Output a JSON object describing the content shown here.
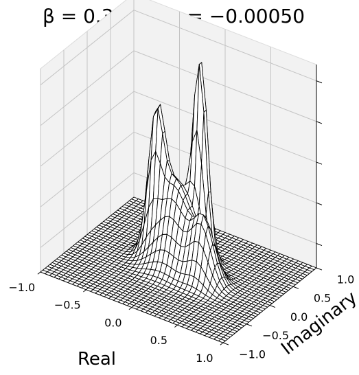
{
  "chart_data": {
    "type": "surface",
    "title": "β = 0.36712  h = −0.00050",
    "xlabel": "Real",
    "ylabel": "Imaginary",
    "zlabel": "",
    "xlim": [
      -1.0,
      1.0
    ],
    "ylim": [
      -1.0,
      1.0
    ],
    "zlim": [
      0.0,
      1.0
    ],
    "xticks": [
      "−1.0",
      "−0.5",
      "0.0",
      "0.5",
      "1.0"
    ],
    "yticks": [
      "−1.0",
      "−0.5",
      "0.0",
      "0.5",
      "1.0"
    ],
    "zticks_count": 5,
    "grid": true,
    "surface_color": "#ffffff",
    "wire_color": "#000000",
    "pane_color": "#f2f2f2",
    "peaks": [
      {
        "x": -0.28,
        "y": 0.08,
        "height": 0.63,
        "width": 0.08
      },
      {
        "x": 0.1,
        "y": 0.28,
        "height": 0.94,
        "width": 0.07
      },
      {
        "x": 0.3,
        "y": -0.05,
        "height": 0.3,
        "width": 0.11
      },
      {
        "x": -0.05,
        "y": 0.05,
        "height": 0.42,
        "width": 0.16
      }
    ]
  }
}
